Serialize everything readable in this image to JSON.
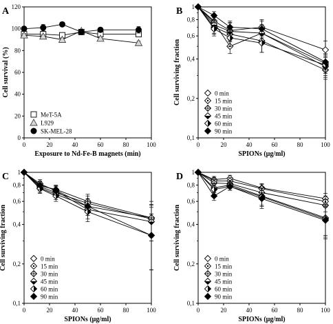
{
  "figure": {
    "panels": [
      {
        "letter": "A",
        "xlabel": "Exposure to Nd-Fe-B magnets (min)",
        "ylabel": "Cell survival (%)",
        "xticks": [
          "0",
          "20",
          "40",
          "60",
          "80",
          "100"
        ],
        "yticks": [
          "0",
          "20",
          "40",
          "60",
          "80",
          "100",
          "120"
        ]
      },
      {
        "letter": "B",
        "xlabel": "SPIONs (µg/ml)",
        "ylabel": "Cell surviving fraction",
        "xticks": [
          "0",
          "20",
          "40",
          "60",
          "80",
          "100"
        ],
        "yticks": [
          "1",
          "0,8",
          "0,6",
          "0,4",
          "0,2",
          "0,1"
        ]
      },
      {
        "letter": "C",
        "xlabel": "SPIONs (µg/ml)",
        "ylabel": "Cell surviving fraction",
        "xticks": [
          "0",
          "20",
          "40",
          "60",
          "80",
          "100"
        ],
        "yticks": [
          "1",
          "0,8",
          "0,6",
          "0,4",
          "0,2",
          "0,1"
        ]
      },
      {
        "letter": "D",
        "xlabel": "SPIONs (µg/ml)",
        "ylabel": "Cell surviving fraction",
        "xticks": [
          "0",
          "20",
          "40",
          "60",
          "80",
          "100"
        ],
        "yticks": [
          "1",
          "0,8",
          "0,6",
          "0,4",
          "0,2",
          "0,1"
        ]
      }
    ]
  },
  "chart_data": [
    {
      "panel": "A",
      "type": "line",
      "xlabel": "Exposure to Nd-Fe-B magnets (min)",
      "ylabel": "Cell survival (%)",
      "xlim": [
        0,
        100
      ],
      "ylim": [
        0,
        120
      ],
      "legend_position": "bottom-left",
      "series": [
        {
          "name": "MeT-5A",
          "marker": "square-open",
          "x": [
            0,
            15,
            30,
            45,
            60,
            90
          ],
          "y": [
            95,
            95,
            94,
            97,
            95,
            95
          ],
          "err": [
            1.5,
            1.5,
            1.5,
            1.5,
            1.5,
            1.5
          ]
        },
        {
          "name": "L929",
          "marker": "triangle-open",
          "x": [
            0,
            15,
            30,
            45,
            60,
            90
          ],
          "y": [
            94,
            93,
            90,
            98,
            91,
            87
          ],
          "err": [
            1.5,
            1.5,
            1.5,
            1.5,
            1.5,
            1.5
          ]
        },
        {
          "name": "SK-MEL-28",
          "marker": "circle-filled",
          "x": [
            0,
            15,
            30,
            45,
            60,
            90
          ],
          "y": [
            100,
            101,
            104,
            97,
            99,
            99
          ],
          "err": [
            2,
            3,
            2,
            2,
            2,
            3
          ]
        }
      ]
    },
    {
      "panel": "B",
      "type": "line",
      "xlabel": "SPIONs (µg/ml)",
      "ylabel": "Cell surviving fraction",
      "xlim": [
        0,
        100
      ],
      "ylim": [
        0.1,
        1
      ],
      "yscale": "log",
      "legend_position": "bottom-left",
      "series": [
        {
          "name": "0 min",
          "marker": "diamond-open",
          "x": [
            0,
            12.5,
            25,
            50,
            100
          ],
          "y": [
            1,
            0.78,
            0.66,
            0.7,
            0.47
          ],
          "err": [
            0,
            0.08,
            0.1,
            0.1,
            0.08
          ]
        },
        {
          "name": "15 min",
          "marker": "diamond-dot",
          "x": [
            0,
            12.5,
            25,
            50,
            100
          ],
          "y": [
            1,
            0.76,
            0.5,
            0.63,
            0.37
          ],
          "err": [
            0,
            0.1,
            0.06,
            0.1,
            0.06
          ]
        },
        {
          "name": "30 min",
          "marker": "diamond-cross",
          "x": [
            0,
            12.5,
            25,
            50,
            100
          ],
          "y": [
            1,
            0.7,
            0.62,
            0.55,
            0.33
          ],
          "err": [
            0,
            0.08,
            0.08,
            0.1,
            0.05
          ]
        },
        {
          "name": "45 min",
          "marker": "diamond-half-h",
          "x": [
            0,
            12.5,
            25,
            50,
            100
          ],
          "y": [
            1,
            0.73,
            0.65,
            0.63,
            0.35
          ],
          "err": [
            0,
            0.1,
            0.1,
            0.1,
            0.06
          ]
        },
        {
          "name": "60 min",
          "marker": "diamond-half-v",
          "x": [
            0,
            12.5,
            25,
            50,
            100
          ],
          "y": [
            1,
            0.68,
            0.58,
            0.53,
            0.36
          ],
          "err": [
            0,
            0.08,
            0.08,
            0.08,
            0.06
          ]
        },
        {
          "name": "90 min",
          "marker": "diamond-filled",
          "x": [
            0,
            12.5,
            25,
            50,
            100
          ],
          "y": [
            1,
            0.86,
            0.7,
            0.68,
            0.38
          ],
          "err": [
            0,
            0.06,
            0.08,
            0.1,
            0.06
          ]
        }
      ]
    },
    {
      "panel": "C",
      "type": "line",
      "xlabel": "SPIONs (µg/ml)",
      "ylabel": "Cell surviving fraction",
      "xlim": [
        0,
        100
      ],
      "ylim": [
        0.1,
        1
      ],
      "yscale": "log",
      "legend_position": "bottom-left",
      "series": [
        {
          "name": "0 min",
          "marker": "diamond-open",
          "x": [
            0,
            12.5,
            25,
            50,
            100
          ],
          "y": [
            1,
            0.79,
            0.74,
            0.6,
            0.45
          ],
          "err": [
            0,
            0.06,
            0.06,
            0.08,
            0.12
          ]
        },
        {
          "name": "15 min",
          "marker": "diamond-dot",
          "x": [
            0,
            12.5,
            25,
            50,
            100
          ],
          "y": [
            1,
            0.78,
            0.7,
            0.58,
            0.44
          ],
          "err": [
            0,
            0.06,
            0.06,
            0.08,
            0.12
          ]
        },
        {
          "name": "30 min",
          "marker": "diamond-cross",
          "x": [
            0,
            12.5,
            25,
            50,
            100
          ],
          "y": [
            1,
            0.76,
            0.68,
            0.55,
            0.45
          ],
          "err": [
            0,
            0.06,
            0.06,
            0.08,
            0.15
          ]
        },
        {
          "name": "45 min",
          "marker": "diamond-half-h",
          "x": [
            0,
            12.5,
            25,
            50,
            100
          ],
          "y": [
            1,
            0.82,
            0.72,
            0.52,
            0.42
          ],
          "err": [
            0,
            0.06,
            0.06,
            0.08,
            0.12
          ]
        },
        {
          "name": "60 min",
          "marker": "diamond-half-v",
          "x": [
            0,
            12.5,
            25,
            50,
            100
          ],
          "y": [
            1,
            0.75,
            0.66,
            0.5,
            0.33
          ],
          "err": [
            0,
            0.06,
            0.06,
            0.08,
            0.15
          ]
        },
        {
          "name": "90 min",
          "marker": "diamond-filled",
          "x": [
            0,
            12.5,
            25,
            50,
            100
          ],
          "y": [
            1,
            0.8,
            0.73,
            0.55,
            0.33
          ],
          "err": [
            0,
            0.06,
            0.06,
            0.08,
            0.15
          ]
        }
      ]
    },
    {
      "panel": "D",
      "type": "line",
      "xlabel": "SPIONs (µg/ml)",
      "ylabel": "Cell surviving fraction",
      "xlim": [
        0,
        100
      ],
      "ylim": [
        0.1,
        1
      ],
      "yscale": "log",
      "legend_position": "bottom-left",
      "series": [
        {
          "name": "0 min",
          "marker": "diamond-open",
          "x": [
            0,
            12.5,
            25,
            50,
            100
          ],
          "y": [
            1,
            0.88,
            0.9,
            0.76,
            0.63
          ],
          "err": [
            0,
            0.05,
            0.05,
            0.06,
            0.06
          ]
        },
        {
          "name": "15 min",
          "marker": "diamond-dot",
          "x": [
            0,
            12.5,
            25,
            50,
            100
          ],
          "y": [
            1,
            0.86,
            0.86,
            0.75,
            0.6
          ],
          "err": [
            0,
            0.05,
            0.05,
            0.06,
            0.06
          ]
        },
        {
          "name": "30 min",
          "marker": "diamond-cross",
          "x": [
            0,
            12.5,
            25,
            50,
            100
          ],
          "y": [
            1,
            0.83,
            0.82,
            0.7,
            0.56
          ],
          "err": [
            0,
            0.05,
            0.05,
            0.06,
            0.06
          ]
        },
        {
          "name": "45 min",
          "marker": "diamond-half-h",
          "x": [
            0,
            12.5,
            25,
            50,
            100
          ],
          "y": [
            1,
            0.76,
            0.8,
            0.66,
            0.45
          ],
          "err": [
            0,
            0.06,
            0.05,
            0.1,
            0.12
          ]
        },
        {
          "name": "60 min",
          "marker": "diamond-half-v",
          "x": [
            0,
            12.5,
            25,
            50,
            100
          ],
          "y": [
            1,
            0.74,
            0.78,
            0.65,
            0.44
          ],
          "err": [
            0,
            0.06,
            0.05,
            0.1,
            0.12
          ]
        },
        {
          "name": "90 min",
          "marker": "diamond-filled",
          "x": [
            0,
            12.5,
            25,
            50,
            100
          ],
          "y": [
            1,
            0.66,
            0.78,
            0.63,
            0.43
          ],
          "err": [
            0,
            0.05,
            0.05,
            0.1,
            0.12
          ]
        }
      ]
    }
  ]
}
